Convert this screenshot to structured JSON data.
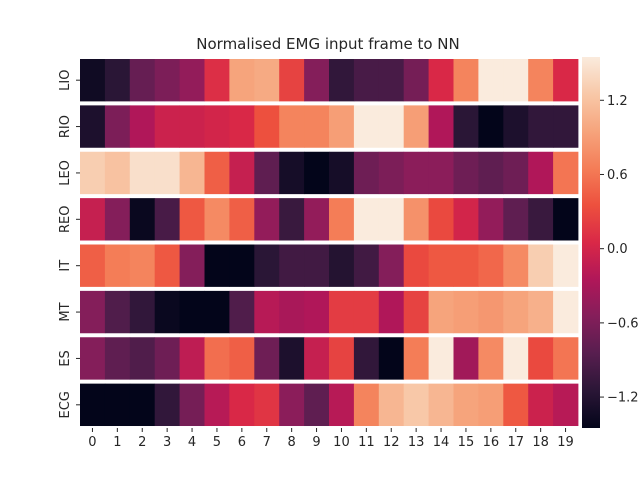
{
  "chart_data": {
    "type": "heatmap",
    "title": "Normalised EMG input frame to NN",
    "xlabel": "",
    "ylabel": "",
    "x": [
      "0",
      "1",
      "2",
      "3",
      "4",
      "5",
      "6",
      "7",
      "8",
      "9",
      "10",
      "11",
      "12",
      "13",
      "14",
      "15",
      "16",
      "17",
      "18",
      "19"
    ],
    "rows": [
      "LIO",
      "RIO",
      "LEO",
      "REO",
      "IT",
      "MT",
      "ES",
      "ECG"
    ],
    "values": [
      [
        -1.35,
        -1.15,
        -0.75,
        -0.6,
        -0.45,
        0.1,
        0.95,
        1.0,
        0.25,
        -0.55,
        -1.1,
        -0.95,
        -0.95,
        -0.65,
        0.05,
        0.7,
        1.55,
        1.55,
        0.7,
        0.05
      ],
      [
        -1.25,
        -0.6,
        -0.25,
        -0.05,
        -0.05,
        0.0,
        0.05,
        0.35,
        0.7,
        0.7,
        0.9,
        1.55,
        1.55,
        0.9,
        -0.25,
        -1.15,
        -1.45,
        -1.25,
        -1.1,
        -1.1
      ],
      [
        1.3,
        1.2,
        1.45,
        1.45,
        1.1,
        0.45,
        -0.1,
        -0.8,
        -1.3,
        -1.45,
        -1.3,
        -0.7,
        -0.6,
        -0.5,
        -0.5,
        -0.7,
        -0.8,
        -0.7,
        -0.25,
        0.6
      ],
      [
        -0.1,
        -0.55,
        -1.4,
        -0.95,
        0.4,
        0.75,
        0.45,
        -0.45,
        -1.05,
        -0.45,
        0.65,
        1.55,
        1.55,
        0.8,
        0.3,
        0.0,
        -0.45,
        -0.8,
        -1.05,
        -1.45
      ],
      [
        0.45,
        0.65,
        0.7,
        0.4,
        -0.55,
        -1.45,
        -1.45,
        -1.15,
        -1.0,
        -1.0,
        -1.2,
        -1.0,
        -0.55,
        0.3,
        0.4,
        0.4,
        0.5,
        0.75,
        1.3,
        1.55
      ],
      [
        -0.55,
        -0.9,
        -1.1,
        -1.4,
        -1.45,
        -1.45,
        -0.9,
        -0.2,
        -0.3,
        -0.25,
        0.2,
        0.2,
        -0.25,
        0.25,
        0.95,
        0.9,
        0.85,
        0.95,
        1.05,
        1.55
      ],
      [
        -0.55,
        -0.8,
        -0.9,
        -0.7,
        -0.15,
        0.55,
        0.45,
        -0.7,
        -1.25,
        -0.1,
        0.25,
        -1.1,
        -1.45,
        0.65,
        1.55,
        -0.35,
        0.75,
        1.55,
        0.3,
        0.6
      ],
      [
        -1.45,
        -1.45,
        -1.45,
        -1.1,
        -0.65,
        -0.2,
        0.05,
        0.15,
        -0.5,
        -0.8,
        -0.2,
        0.7,
        1.1,
        1.25,
        1.1,
        0.95,
        0.9,
        0.4,
        -0.05,
        -0.2
      ]
    ],
    "vmin": -1.45,
    "vmax": 1.55,
    "colorbar_ticks": [
      {
        "value": 1.2,
        "label": "1.2"
      },
      {
        "value": 0.6,
        "label": "0.6"
      },
      {
        "value": 0.0,
        "label": "0.0"
      },
      {
        "value": -0.6,
        "label": "−0.6"
      },
      {
        "value": -1.2,
        "label": "−1.2"
      }
    ],
    "colormap": "rocket",
    "colormap_stops": [
      "#03051a",
      "#2a1636",
      "#571e4f",
      "#841e5a",
      "#b01759",
      "#d92847",
      "#ed503e",
      "#f47d57",
      "#f6a47c",
      "#f8c8a8",
      "#faebdd"
    ],
    "grid": false,
    "legend": "colorbar-right"
  }
}
